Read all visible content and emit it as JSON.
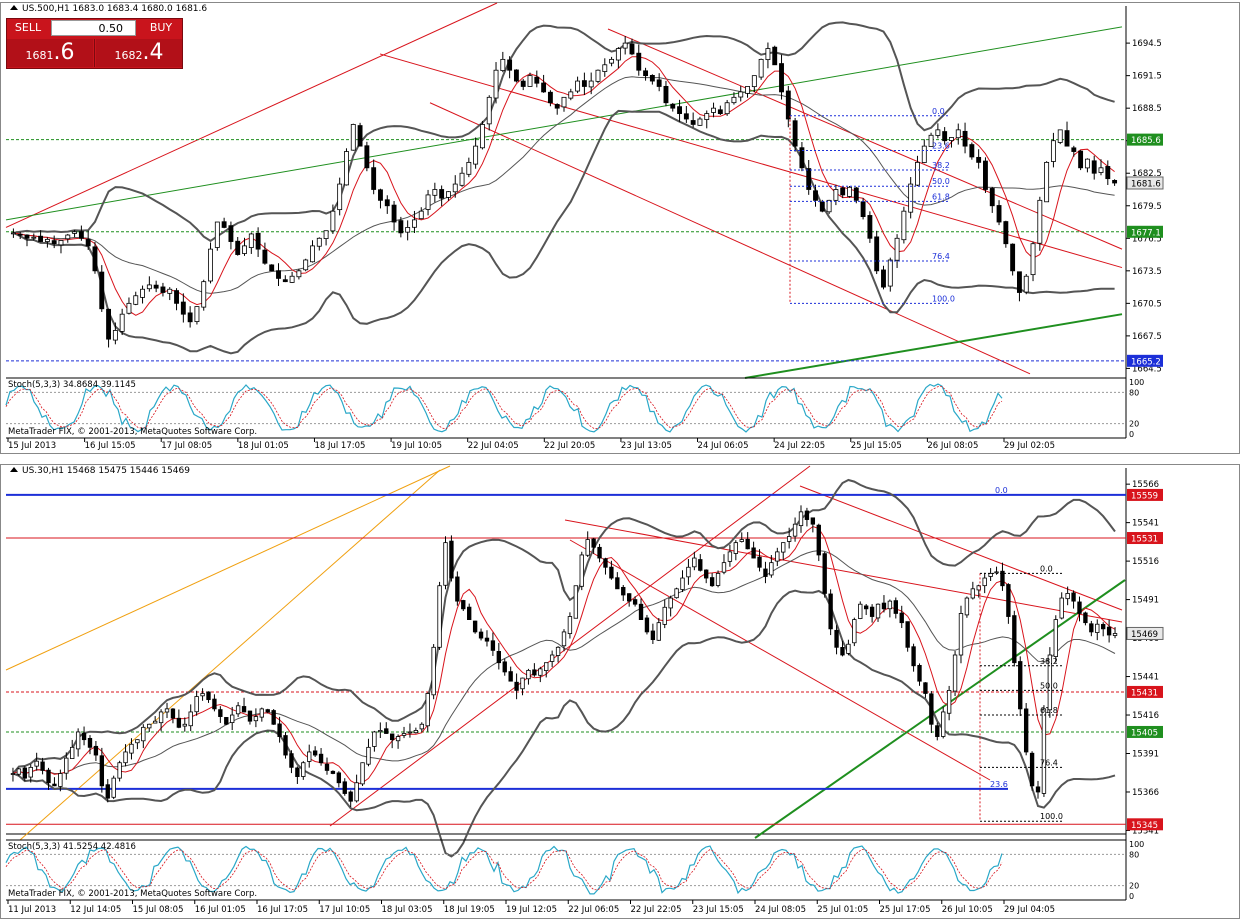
{
  "chart_data": [
    {
      "type": "candlestick",
      "symbol_header": "US.500,H1  1683.0 1683.4 1680.0 1681.6",
      "ylim": [
        1663.8,
        1697.0
      ],
      "y_ticks": [
        "1694.5",
        "1691.5",
        "1688.5",
        "1685.5",
        "1682.5",
        "1679.5",
        "1676.5",
        "1673.5",
        "1670.5",
        "1667.5",
        "1664.5"
      ],
      "x_ticks": [
        "15 Jul 2013",
        "16 Jul 15:05",
        "17 Jul 08:05",
        "18 Jul 01:05",
        "18 Jul 17:05",
        "19 Jul 10:05",
        "22 Jul 04:05",
        "22 Jul 20:05",
        "23 Jul 13:05",
        "24 Jul 06:05",
        "24 Jul 22:05",
        "25 Jul 15:05",
        "26 Jul 08:05",
        "29 Jul 02:05"
      ],
      "closes": [
        1677.0,
        1676.8,
        1676.5,
        1676.6,
        1676.2,
        1676.4,
        1676.0,
        1676.3,
        1676.8,
        1677.1,
        1676.5,
        1675.8,
        1673.5,
        1670.0,
        1667.2,
        1668.0,
        1669.5,
        1670.5,
        1671.2,
        1671.8,
        1672.2,
        1671.9,
        1671.5,
        1671.8,
        1670.5,
        1669.5,
        1668.8,
        1670.2,
        1672.5,
        1675.5,
        1678.0,
        1677.5,
        1676.2,
        1675.0,
        1675.8,
        1676.9,
        1675.5,
        1674.2,
        1673.5,
        1672.8,
        1672.5,
        1673.0,
        1673.5,
        1674.5,
        1675.8,
        1676.5,
        1677.2,
        1679.0,
        1681.5,
        1684.5,
        1687.0,
        1685.0,
        1683.0,
        1681.0,
        1680.0,
        1679.5,
        1678.0,
        1677.0,
        1677.5,
        1678.2,
        1679.0,
        1680.5,
        1681.0,
        1680.2,
        1680.8,
        1681.5,
        1682.5,
        1683.5,
        1685.0,
        1687.0,
        1689.5,
        1692.0,
        1693.0,
        1692.0,
        1691.0,
        1690.5,
        1691.5,
        1690.8,
        1690.0,
        1689.0,
        1688.5,
        1689.5,
        1690.0,
        1691.0,
        1690.5,
        1691.0,
        1692.0,
        1692.5,
        1693.0,
        1694.0,
        1694.5,
        1693.5,
        1692.0,
        1691.5,
        1691.0,
        1690.5,
        1689.0,
        1688.5,
        1688.0,
        1687.5,
        1687.0,
        1687.5,
        1688.0,
        1688.5,
        1688.0,
        1689.0,
        1689.5,
        1690.0,
        1690.5,
        1691.5,
        1693.0,
        1694.0,
        1692.5,
        1690.0,
        1687.5,
        1685.0,
        1683.0,
        1681.0,
        1680.0,
        1679.0,
        1680.0,
        1681.0,
        1680.5,
        1681.2,
        1680.0,
        1678.5,
        1676.5,
        1673.5,
        1672.0,
        1674.5,
        1676.5,
        1679.0,
        1681.5,
        1683.5,
        1685.0,
        1686.0,
        1686.5,
        1685.5,
        1685.8,
        1686.5,
        1685.0,
        1684.0,
        1683.5,
        1681.0,
        1679.5,
        1678.0,
        1676.0,
        1673.5,
        1671.5,
        1673.0,
        1676.0,
        1680.0,
        1683.5,
        1685.5,
        1686.5,
        1685.0,
        1684.5,
        1683.0,
        1683.8,
        1682.5,
        1683.0,
        1682.0,
        1681.6
      ],
      "fibonacci_levels": [
        "0.0",
        "23.6",
        "38.2",
        "50.0",
        "61.8",
        "76.4",
        "100.0"
      ],
      "price_labels": [
        {
          "text": "1685.6",
          "color": "#1f8f1f"
        },
        {
          "text": "1681.6",
          "color": "#e8e8e8"
        },
        {
          "text": "1677.1",
          "color": "#1f8f1f"
        },
        {
          "text": "1665.2",
          "color": "#1c2fd8"
        }
      ],
      "indicator_header": "Stoch(5,3,3) 34.8684 39.1145",
      "indicator_scale": [
        "100",
        "80",
        "20",
        "0"
      ],
      "copyright": "MetaTrader FIX, © 2001-2013, MetaQuotes Software Corp."
    },
    {
      "type": "candlestick",
      "symbol_header": "US.30,H1  15468 15475 15446 15469",
      "ylim": [
        15340,
        15570
      ],
      "y_ticks": [
        "15566",
        "15541",
        "15516",
        "15491",
        "15466",
        "15441",
        "15416",
        "15391",
        "15366",
        "15341"
      ],
      "x_ticks": [
        "11 Jul 2013",
        "12 Jul 14:05",
        "15 Jul 08:05",
        "16 Jul 01:05",
        "16 Jul 17:05",
        "17 Jul 10:05",
        "18 Jul 03:05",
        "18 Jul 19:05",
        "19 Jul 12:05",
        "22 Jul 06:05",
        "22 Jul 22:05",
        "23 Jul 15:05",
        "24 Jul 08:05",
        "25 Jul 01:05",
        "25 Jul 17:05",
        "26 Jul 10:05",
        "29 Jul 04:05"
      ],
      "closes": [
        15378,
        15381,
        15375,
        15382,
        15386,
        15380,
        15372,
        15370,
        15378,
        15388,
        15395,
        15405,
        15400,
        15395,
        15390,
        15370,
        15362,
        15375,
        15385,
        15392,
        15397,
        15400,
        15408,
        15410,
        15412,
        15418,
        15420,
        15414,
        15408,
        15410,
        15418,
        15428,
        15430,
        15426,
        15420,
        15415,
        15410,
        15416,
        15422,
        15418,
        15412,
        15415,
        15420,
        15418,
        15410,
        15402,
        15390,
        15382,
        15376,
        15385,
        15392,
        15390,
        15385,
        15380,
        15378,
        15372,
        15365,
        15360,
        15372,
        15385,
        15395,
        15405,
        15406,
        15404,
        15400,
        15402,
        15404,
        15405,
        15406,
        15410,
        15430,
        15460,
        15500,
        15528,
        15505,
        15490,
        15485,
        15478,
        15470,
        15466,
        15464,
        15458,
        15450,
        15444,
        15438,
        15432,
        15440,
        15445,
        15442,
        15446,
        15450,
        15455,
        15460,
        15470,
        15480,
        15500,
        15520,
        15530,
        15525,
        15518,
        15512,
        15505,
        15498,
        15494,
        15490,
        15488,
        15478,
        15470,
        15465,
        15476,
        15486,
        15492,
        15498,
        15505,
        15512,
        15518,
        15510,
        15505,
        15500,
        15508,
        15515,
        15522,
        15528,
        15530,
        15524,
        15518,
        15512,
        15506,
        15515,
        15522,
        15528,
        15532,
        15540,
        15548,
        15543,
        15540,
        15520,
        15495,
        15472,
        15460,
        15455,
        15462,
        15478,
        15488,
        15485,
        15480,
        15488,
        15485,
        15490,
        15482,
        15476,
        15460,
        15448,
        15438,
        15430,
        15410,
        15402,
        15418,
        15432,
        15455,
        15482,
        15492,
        15498,
        15500,
        15505,
        15508,
        15509,
        15500,
        15480,
        15450,
        15420,
        15392,
        15370,
        15366,
        15420,
        15455,
        15478,
        15492,
        15495,
        15490,
        15482,
        15476,
        15470,
        15475,
        15472,
        15468,
        15469
      ],
      "fibonacci_levels": [
        "0.0",
        "38.2",
        "50.0",
        "61.8",
        "76.4",
        "100.0"
      ],
      "upper_fib_labels": [
        "0.0",
        "23.6"
      ],
      "price_labels": [
        {
          "text": "15559",
          "color": "#d8141c"
        },
        {
          "text": "15531",
          "color": "#d8141c"
        },
        {
          "text": "15469",
          "color": "#e8e8e8"
        },
        {
          "text": "15431",
          "color": "#d8141c"
        },
        {
          "text": "15405",
          "color": "#1f8f1f"
        },
        {
          "text": "15345",
          "color": "#d8141c"
        }
      ],
      "indicator_header": "Stoch(5,3,3) 41.5254 42.4816",
      "indicator_scale": [
        "100",
        "80",
        "20",
        "0"
      ],
      "copyright": "MetaTrader FIX, © 2001-2013, MetaQuotes Software Corp."
    }
  ],
  "trade_panel": {
    "sell_label": "SELL",
    "buy_label": "BUY",
    "lot": "0.50",
    "bid_prefix": "1681",
    "bid_big": ".6",
    "ask_prefix": "1682",
    "ask_big": ".4"
  },
  "colors": {
    "candle_up": "#000000",
    "candle_down": "#000000",
    "bollinger": "#555555",
    "ma": "#d8141c",
    "stoch_main": "#2aa8c8",
    "stoch_signal": "#d8141c",
    "trend_red": "#d8141c",
    "trend_green": "#1f8f1f",
    "trend_orange": "#f0a010",
    "hline_blue": "#1c2fd8",
    "fib_blue": "#1c2fd8"
  }
}
